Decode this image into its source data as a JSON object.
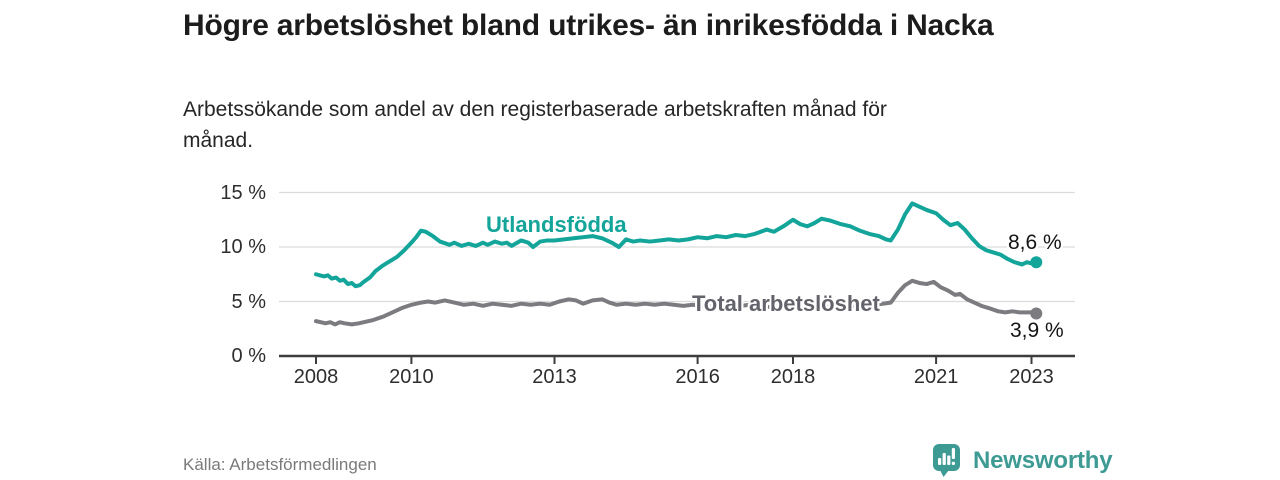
{
  "title": "Högre arbetslöshet bland utrikes- än inrikesfödda i Nacka",
  "subtitle": "Arbetssökande som andel av den registerbaserade arbetskraften månad för månad.",
  "source": "Källa: Arbetsförmedlingen",
  "brand": {
    "name": "Newsworthy",
    "color": "#3d9b94",
    "icon": "bar-chart-speech-bubble-icon"
  },
  "colors": {
    "series_foreign_born": "#13a49a",
    "series_total": "#7c7c80",
    "total_label": "#63636b",
    "gridline": "#dcdcdc",
    "axis": "#3d3d3d",
    "axis_text": "#2e2e2e",
    "title_text": "#1c1c1c",
    "end_label_text": "#141414"
  },
  "chart_data": {
    "type": "line",
    "title": "Högre arbetslöshet bland utrikes- än inrikesfödda i Nacka",
    "subtitle": "Arbetssökande som andel av den registerbaserade arbetskraften månad för månad.",
    "xlabel": "",
    "ylabel": "",
    "x_range": [
      2008,
      2023.17
    ],
    "ylim": [
      0,
      15
    ],
    "grid": true,
    "legend_position": "inline-labels",
    "x_axis": {
      "ticks": [
        2008,
        2010,
        2013,
        2016,
        2018,
        2021,
        2023
      ],
      "labels": [
        "2008",
        "2010",
        "2013",
        "2016",
        "2018",
        "2021",
        "2023"
      ]
    },
    "y_axis": {
      "ticks": [
        0,
        5,
        10,
        15
      ],
      "labels": [
        "0 %",
        "5 %",
        "10 %",
        "15 %"
      ]
    },
    "series": [
      {
        "name": "Utlandsfödda",
        "color": "#13a49a",
        "end_label": "8,6 %",
        "end_value": 8.6,
        "points": [
          [
            2008.0,
            7.5
          ],
          [
            2008.08,
            7.4
          ],
          [
            2008.17,
            7.3
          ],
          [
            2008.25,
            7.4
          ],
          [
            2008.33,
            7.1
          ],
          [
            2008.42,
            7.2
          ],
          [
            2008.5,
            6.9
          ],
          [
            2008.58,
            7.0
          ],
          [
            2008.67,
            6.6
          ],
          [
            2008.75,
            6.7
          ],
          [
            2008.83,
            6.4
          ],
          [
            2008.92,
            6.5
          ],
          [
            2009.0,
            6.8
          ],
          [
            2009.13,
            7.2
          ],
          [
            2009.25,
            7.8
          ],
          [
            2009.4,
            8.3
          ],
          [
            2009.55,
            8.7
          ],
          [
            2009.7,
            9.1
          ],
          [
            2009.85,
            9.7
          ],
          [
            2010.0,
            10.4
          ],
          [
            2010.1,
            10.9
          ],
          [
            2010.2,
            11.5
          ],
          [
            2010.3,
            11.4
          ],
          [
            2010.45,
            11.0
          ],
          [
            2010.6,
            10.5
          ],
          [
            2010.8,
            10.2
          ],
          [
            2010.9,
            10.4
          ],
          [
            2011.05,
            10.1
          ],
          [
            2011.2,
            10.3
          ],
          [
            2011.35,
            10.1
          ],
          [
            2011.5,
            10.4
          ],
          [
            2011.6,
            10.2
          ],
          [
            2011.75,
            10.5
          ],
          [
            2011.9,
            10.3
          ],
          [
            2012.0,
            10.4
          ],
          [
            2012.1,
            10.1
          ],
          [
            2012.3,
            10.6
          ],
          [
            2012.45,
            10.4
          ],
          [
            2012.55,
            10.0
          ],
          [
            2012.7,
            10.5
          ],
          [
            2012.85,
            10.6
          ],
          [
            2013.0,
            10.6
          ],
          [
            2013.2,
            10.7
          ],
          [
            2013.4,
            10.8
          ],
          [
            2013.6,
            10.9
          ],
          [
            2013.8,
            11.0
          ],
          [
            2014.0,
            10.8
          ],
          [
            2014.2,
            10.4
          ],
          [
            2014.35,
            10.0
          ],
          [
            2014.5,
            10.7
          ],
          [
            2014.65,
            10.5
          ],
          [
            2014.8,
            10.6
          ],
          [
            2015.0,
            10.5
          ],
          [
            2015.2,
            10.6
          ],
          [
            2015.4,
            10.7
          ],
          [
            2015.6,
            10.6
          ],
          [
            2015.8,
            10.7
          ],
          [
            2016.0,
            10.9
          ],
          [
            2016.2,
            10.8
          ],
          [
            2016.4,
            11.0
          ],
          [
            2016.6,
            10.9
          ],
          [
            2016.8,
            11.1
          ],
          [
            2017.0,
            11.0
          ],
          [
            2017.2,
            11.2
          ],
          [
            2017.45,
            11.6
          ],
          [
            2017.6,
            11.4
          ],
          [
            2017.8,
            11.9
          ],
          [
            2018.0,
            12.5
          ],
          [
            2018.15,
            12.1
          ],
          [
            2018.3,
            11.9
          ],
          [
            2018.45,
            12.2
          ],
          [
            2018.6,
            12.6
          ],
          [
            2018.8,
            12.4
          ],
          [
            2019.0,
            12.1
          ],
          [
            2019.2,
            11.9
          ],
          [
            2019.4,
            11.5
          ],
          [
            2019.6,
            11.2
          ],
          [
            2019.8,
            11.0
          ],
          [
            2019.95,
            10.7
          ],
          [
            2020.05,
            10.6
          ],
          [
            2020.2,
            11.6
          ],
          [
            2020.35,
            13.0
          ],
          [
            2020.5,
            14.0
          ],
          [
            2020.65,
            13.7
          ],
          [
            2020.8,
            13.4
          ],
          [
            2021.0,
            13.1
          ],
          [
            2021.15,
            12.5
          ],
          [
            2021.3,
            12.0
          ],
          [
            2021.45,
            12.2
          ],
          [
            2021.6,
            11.6
          ],
          [
            2021.75,
            10.8
          ],
          [
            2021.9,
            10.1
          ],
          [
            2022.05,
            9.7
          ],
          [
            2022.2,
            9.5
          ],
          [
            2022.35,
            9.3
          ],
          [
            2022.5,
            8.9
          ],
          [
            2022.65,
            8.6
          ],
          [
            2022.8,
            8.4
          ],
          [
            2022.9,
            8.6
          ],
          [
            2023.0,
            8.5
          ],
          [
            2023.1,
            8.6
          ]
        ]
      },
      {
        "name": "Total arbetslöshet",
        "color": "#7c7c80",
        "end_label": "3,9 %",
        "end_value": 3.9,
        "points": [
          [
            2008.0,
            3.2
          ],
          [
            2008.1,
            3.1
          ],
          [
            2008.2,
            3.0
          ],
          [
            2008.3,
            3.1
          ],
          [
            2008.4,
            2.9
          ],
          [
            2008.5,
            3.1
          ],
          [
            2008.6,
            3.0
          ],
          [
            2008.75,
            2.9
          ],
          [
            2008.9,
            3.0
          ],
          [
            2009.0,
            3.1
          ],
          [
            2009.2,
            3.3
          ],
          [
            2009.4,
            3.6
          ],
          [
            2009.6,
            4.0
          ],
          [
            2009.8,
            4.4
          ],
          [
            2010.0,
            4.7
          ],
          [
            2010.2,
            4.9
          ],
          [
            2010.35,
            5.0
          ],
          [
            2010.5,
            4.9
          ],
          [
            2010.7,
            5.1
          ],
          [
            2010.9,
            4.9
          ],
          [
            2011.1,
            4.7
          ],
          [
            2011.3,
            4.8
          ],
          [
            2011.5,
            4.6
          ],
          [
            2011.7,
            4.8
          ],
          [
            2011.9,
            4.7
          ],
          [
            2012.1,
            4.6
          ],
          [
            2012.3,
            4.8
          ],
          [
            2012.5,
            4.7
          ],
          [
            2012.7,
            4.8
          ],
          [
            2012.9,
            4.7
          ],
          [
            2013.1,
            5.0
          ],
          [
            2013.3,
            5.2
          ],
          [
            2013.45,
            5.1
          ],
          [
            2013.6,
            4.8
          ],
          [
            2013.8,
            5.1
          ],
          [
            2014.0,
            5.2
          ],
          [
            2014.15,
            4.9
          ],
          [
            2014.3,
            4.7
          ],
          [
            2014.5,
            4.8
          ],
          [
            2014.7,
            4.7
          ],
          [
            2014.9,
            4.8
          ],
          [
            2015.1,
            4.7
          ],
          [
            2015.3,
            4.8
          ],
          [
            2015.5,
            4.7
          ],
          [
            2015.7,
            4.6
          ],
          [
            2015.9,
            4.7
          ],
          [
            2016.1,
            4.6
          ],
          [
            2016.3,
            4.7
          ],
          [
            2016.5,
            4.6
          ],
          [
            2016.7,
            4.7
          ],
          [
            2016.9,
            4.6
          ],
          [
            2017.1,
            4.7
          ],
          [
            2017.3,
            4.6
          ],
          [
            2017.5,
            4.5
          ],
          [
            2017.7,
            4.6
          ],
          [
            2017.9,
            4.5
          ],
          [
            2018.1,
            4.4
          ],
          [
            2018.3,
            4.5
          ],
          [
            2018.5,
            4.4
          ],
          [
            2018.7,
            4.5
          ],
          [
            2018.9,
            4.6
          ],
          [
            2019.1,
            4.5
          ],
          [
            2019.3,
            4.6
          ],
          [
            2019.5,
            4.6
          ],
          [
            2019.7,
            4.7
          ],
          [
            2019.9,
            4.8
          ],
          [
            2020.05,
            4.9
          ],
          [
            2020.2,
            5.8
          ],
          [
            2020.35,
            6.5
          ],
          [
            2020.5,
            6.9
          ],
          [
            2020.65,
            6.7
          ],
          [
            2020.8,
            6.6
          ],
          [
            2020.95,
            6.8
          ],
          [
            2021.1,
            6.3
          ],
          [
            2021.25,
            6.0
          ],
          [
            2021.4,
            5.6
          ],
          [
            2021.5,
            5.7
          ],
          [
            2021.65,
            5.2
          ],
          [
            2021.8,
            4.9
          ],
          [
            2021.95,
            4.6
          ],
          [
            2022.1,
            4.4
          ],
          [
            2022.3,
            4.1
          ],
          [
            2022.45,
            4.0
          ],
          [
            2022.6,
            4.1
          ],
          [
            2022.75,
            4.0
          ],
          [
            2022.9,
            4.0
          ],
          [
            2023.0,
            4.0
          ],
          [
            2023.1,
            3.9
          ]
        ]
      }
    ]
  }
}
